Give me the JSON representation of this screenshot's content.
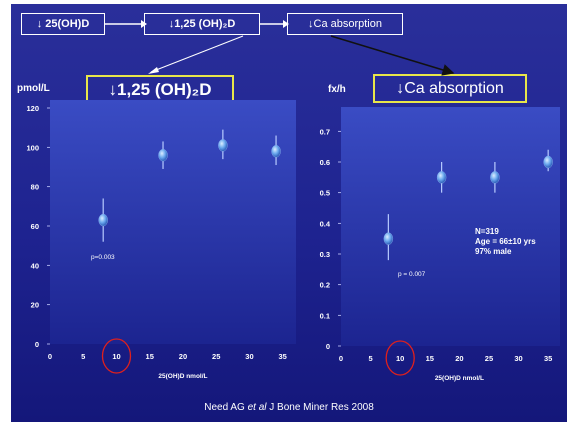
{
  "flow": {
    "box1": "↓ 25(OH)D",
    "box2": "↓1,25 (OH)₂D",
    "box3": "↓Ca absorption"
  },
  "left_title": "↓1,25 (OH)₂D",
  "right_title": "↓Ca absorption",
  "left_unit": "pmol/L",
  "right_unit": "fx/h",
  "left_pvalue": "p=0.003",
  "right_pvalue": "p = 0.007",
  "stats": {
    "n": "N=319",
    "age": "Age = 66±10 yrs",
    "male": "97% male"
  },
  "citation": {
    "pre": "Need AG ",
    "etal": "et al",
    "post": " J Bone Miner Res 2008"
  },
  "colors": {
    "background": "#1e2390",
    "title_border": "#e8e64a",
    "circle": "#e0201c",
    "point": "#6aa8ee"
  },
  "chart_data": [
    {
      "type": "scatter",
      "title": "↓1,25 (OH)₂D",
      "xlabel": "25(OH)D nmol/L",
      "ylabel": "pmol/L",
      "xlim": [
        0,
        37
      ],
      "ylim": [
        0,
        120
      ],
      "xticks": [
        "0",
        "5",
        "10",
        "15",
        "20",
        "25",
        "30",
        "35"
      ],
      "yticks": [
        "0",
        "20",
        "40",
        "60",
        "80",
        "100",
        "120"
      ],
      "points": [
        {
          "x": 8,
          "y": 63,
          "low": 52,
          "high": 74
        },
        {
          "x": 17,
          "y": 96,
          "low": 89,
          "high": 103
        },
        {
          "x": 26,
          "y": 101,
          "low": 94,
          "high": 109
        },
        {
          "x": 34,
          "y": 98,
          "low": 91,
          "high": 106
        }
      ],
      "highlight_x": "10",
      "annotation": "p=0.003"
    },
    {
      "type": "scatter",
      "title": "↓Ca absorption",
      "xlabel": "25(OH)D nmol/L",
      "ylabel": "fx/h",
      "xlim": [
        0,
        37
      ],
      "ylim": [
        0,
        0.75
      ],
      "xticks": [
        "0",
        "5",
        "10",
        "15",
        "20",
        "25",
        "30",
        "35"
      ],
      "yticks": [
        "0",
        "0.1",
        "0.2",
        "0.3",
        "0.4",
        "0.5",
        "0.6",
        "0.7"
      ],
      "points": [
        {
          "x": 8,
          "y": 0.35,
          "low": 0.28,
          "high": 0.43
        },
        {
          "x": 17,
          "y": 0.55,
          "low": 0.5,
          "high": 0.6
        },
        {
          "x": 26,
          "y": 0.55,
          "low": 0.5,
          "high": 0.6
        },
        {
          "x": 35,
          "y": 0.6,
          "low": 0.57,
          "high": 0.64
        }
      ],
      "highlight_x": "10",
      "annotation": "p = 0.007"
    }
  ]
}
